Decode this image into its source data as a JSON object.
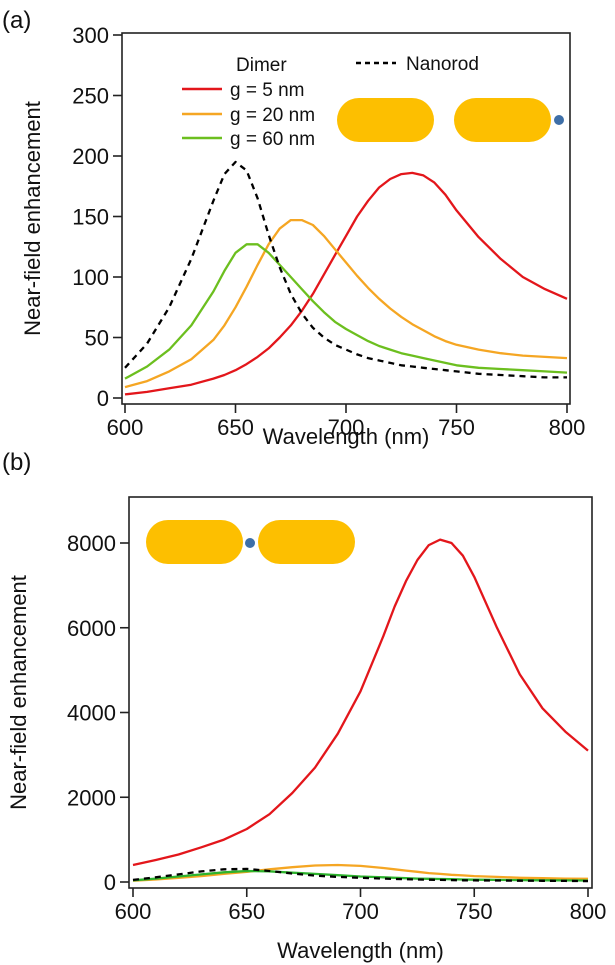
{
  "chart_data": [
    {
      "panel": "(a)",
      "type": "line",
      "title": "",
      "xlabel": "Wavelength (nm)",
      "ylabel": "Near-field enhancement",
      "xlim": [
        600,
        800
      ],
      "ylim": [
        0,
        300
      ],
      "xticks": [
        600,
        650,
        700,
        750,
        800
      ],
      "yticks": [
        0,
        50,
        100,
        150,
        200,
        250,
        300
      ],
      "grid": false,
      "legend": {
        "placement": "top",
        "title": "Dimer",
        "entries": [
          "g = 5 nm",
          "g = 20 nm",
          "g = 60 nm",
          "Nanorod"
        ]
      },
      "inset": "nanorod dimer with molecule at outer end",
      "x": [
        600,
        610,
        620,
        630,
        640,
        645,
        650,
        655,
        660,
        665,
        670,
        675,
        680,
        685,
        690,
        695,
        700,
        705,
        710,
        715,
        720,
        725,
        730,
        735,
        740,
        745,
        750,
        760,
        770,
        780,
        790,
        800
      ],
      "series": [
        {
          "name": "g = 5 nm",
          "color": "#e3161b",
          "dash": false,
          "values": [
            3,
            5,
            8,
            11,
            16,
            19,
            23,
            28,
            34,
            41,
            50,
            60,
            72,
            86,
            102,
            118,
            134,
            150,
            163,
            174,
            181,
            185,
            186,
            184,
            178,
            168,
            155,
            133,
            115,
            100,
            90,
            82
          ]
        },
        {
          "name": "g = 20 nm",
          "color": "#f5a623",
          "dash": false,
          "values": [
            9,
            14,
            22,
            32,
            48,
            60,
            75,
            92,
            110,
            127,
            140,
            147,
            147,
            143,
            134,
            123,
            112,
            101,
            91,
            82,
            74,
            67,
            61,
            56,
            51,
            47,
            44,
            40,
            37,
            35,
            34,
            33
          ]
        },
        {
          "name": "g = 60 nm",
          "color": "#6cbf1f",
          "dash": false,
          "values": [
            16,
            26,
            40,
            60,
            88,
            105,
            120,
            127,
            127,
            120,
            110,
            100,
            90,
            80,
            71,
            63,
            57,
            52,
            47,
            43,
            40,
            37,
            35,
            33,
            31,
            29,
            27,
            25,
            24,
            23,
            22,
            21
          ]
        },
        {
          "name": "Nanorod",
          "color": "#000000",
          "dash": true,
          "values": [
            25,
            45,
            75,
            115,
            163,
            185,
            195,
            188,
            165,
            135,
            108,
            86,
            70,
            58,
            50,
            44,
            40,
            36,
            33,
            31,
            29,
            27,
            26,
            25,
            24,
            23,
            22,
            20,
            19,
            18,
            17,
            17
          ]
        }
      ]
    },
    {
      "panel": "(b)",
      "type": "line",
      "title": "",
      "xlabel": "Wavelength (nm)",
      "ylabel": "Near-field enhancement",
      "xlim": [
        600,
        800
      ],
      "ylim": [
        0,
        9000
      ],
      "xticks": [
        600,
        650,
        700,
        750,
        800
      ],
      "yticks": [
        0,
        2000,
        4000,
        6000,
        8000
      ],
      "grid": false,
      "inset": "nanorod dimer with molecule in gap",
      "x": [
        600,
        610,
        620,
        630,
        640,
        650,
        660,
        670,
        680,
        690,
        700,
        710,
        715,
        720,
        725,
        730,
        735,
        740,
        745,
        750,
        760,
        770,
        780,
        790,
        800
      ],
      "series": [
        {
          "name": "g = 5 nm",
          "color": "#e3161b",
          "dash": false,
          "values": [
            400,
            520,
            650,
            820,
            1000,
            1250,
            1600,
            2100,
            2700,
            3500,
            4500,
            5800,
            6500,
            7100,
            7600,
            7950,
            8080,
            8000,
            7700,
            7200,
            6000,
            4900,
            4100,
            3550,
            3100
          ]
        },
        {
          "name": "g = 20 nm",
          "color": "#f5a623",
          "dash": false,
          "values": [
            30,
            60,
            100,
            140,
            190,
            240,
            300,
            350,
            390,
            400,
            380,
            330,
            300,
            270,
            240,
            210,
            190,
            170,
            155,
            140,
            120,
            100,
            90,
            80,
            75
          ]
        },
        {
          "name": "g = 60 nm",
          "color": "#2db32d",
          "dash": false,
          "values": [
            40,
            80,
            130,
            180,
            230,
            260,
            250,
            220,
            190,
            160,
            130,
            110,
            100,
            90,
            80,
            75,
            70,
            65,
            60,
            55,
            50,
            45,
            40,
            38,
            35
          ]
        },
        {
          "name": "Nanorod",
          "color": "#000000",
          "dash": true,
          "values": [
            50,
            110,
            180,
            250,
            300,
            310,
            260,
            200,
            150,
            120,
            100,
            80,
            70,
            65,
            60,
            55,
            50,
            45,
            40,
            38,
            35,
            30,
            28,
            25,
            22
          ]
        }
      ]
    }
  ],
  "panels": {
    "a": {
      "label": "(a)"
    },
    "b": {
      "label": "(b)"
    }
  },
  "legend": {
    "title": "Dimer",
    "items": [
      {
        "label": "g = 5 nm",
        "color": "#e3161b"
      },
      {
        "label": "g = 20 nm",
        "color": "#f5a623"
      },
      {
        "label": "g = 60 nm",
        "color": "#6cbf1f"
      }
    ],
    "nanorod": {
      "label": "Nanorod",
      "color": "#000000"
    }
  },
  "colors": {
    "rod": "#fdbf00",
    "molecule": "#3e6fa8",
    "axis": "#222222"
  }
}
